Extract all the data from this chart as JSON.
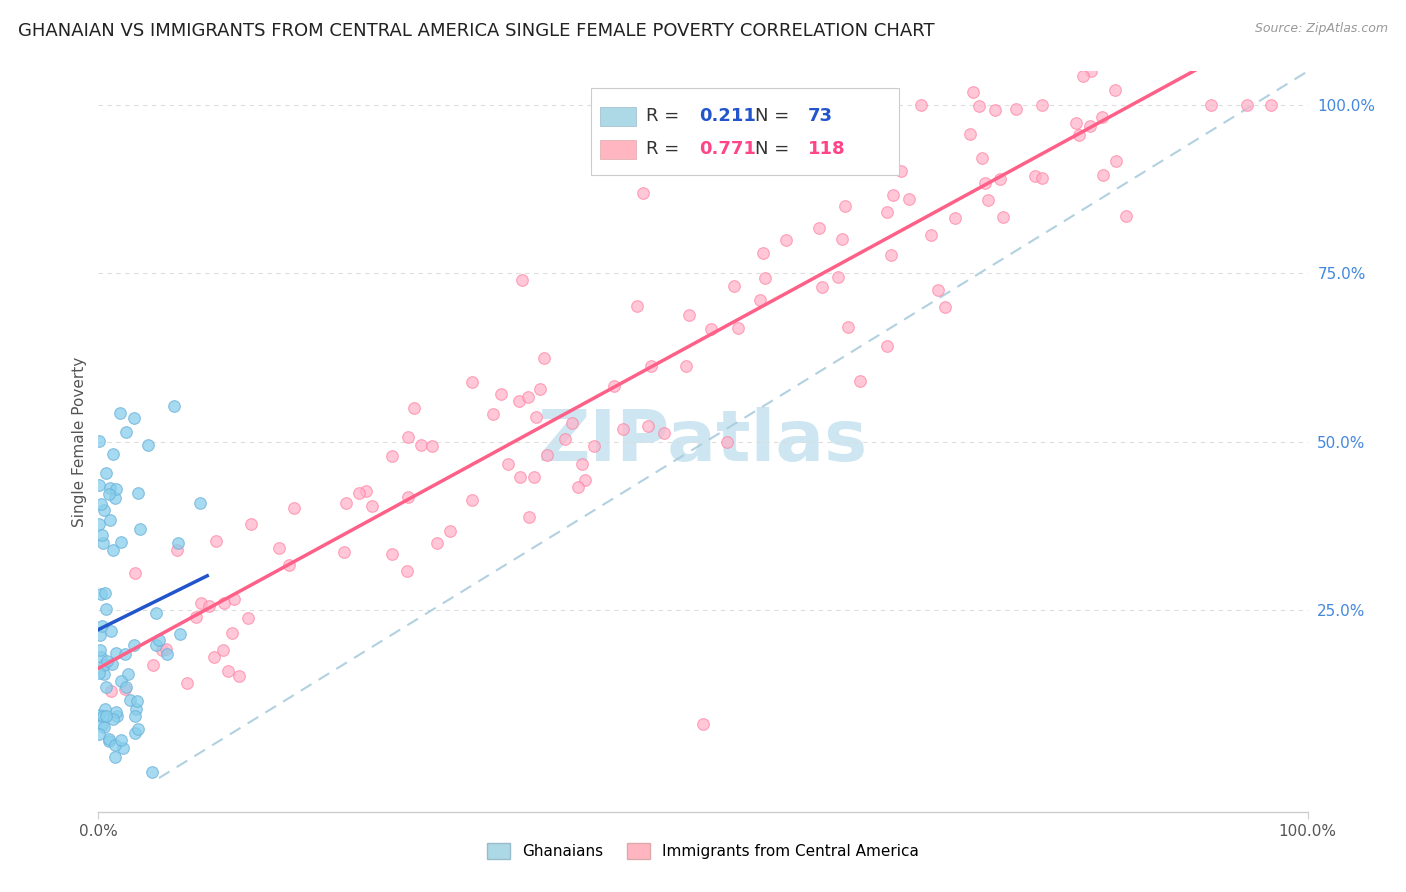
{
  "title": "GHANAIAN VS IMMIGRANTS FROM CENTRAL AMERICA SINGLE FEMALE POVERTY CORRELATION CHART",
  "source": "Source: ZipAtlas.com",
  "ylabel": "Single Female Poverty",
  "xlim": [
    0.0,
    1.0
  ],
  "ylim": [
    -0.05,
    1.05
  ],
  "ghanaian_scatter_color": "#87CEEB",
  "ghanaian_scatter_edge": "#6ab0d8",
  "central_america_scatter_color": "#FFB0C8",
  "central_america_scatter_edge": "#FF80A0",
  "ghanaian_line_color": "#2255CC",
  "central_america_line_color": "#FF6088",
  "dashed_line_color": "#AACCDD",
  "R_ghanaian": 0.211,
  "N_ghanaian": 73,
  "R_central": 0.771,
  "N_central": 118,
  "watermark_text": "ZIPatlas",
  "watermark_color": "#C8E4F0",
  "background_color": "#ffffff",
  "grid_color": "#dddddd",
  "title_fontsize": 13,
  "axis_label_fontsize": 11,
  "tick_fontsize": 11,
  "right_tick_color": "#4488DD",
  "legend_box_color_ghanaian": "#ADD8E6",
  "legend_box_color_central": "#FFB6C1",
  "legend_text_color_black": "#333333",
  "legend_text_color_blue": "#2255CC",
  "legend_text_color_pink": "#FF4488"
}
